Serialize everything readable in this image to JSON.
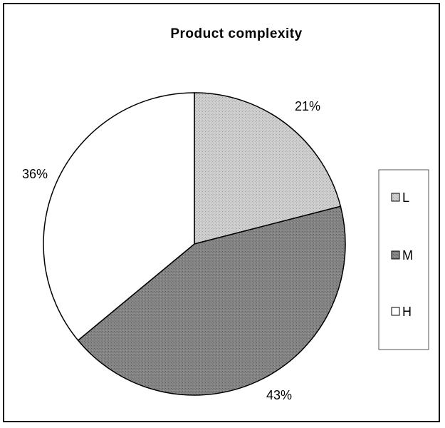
{
  "chart_data": {
    "type": "pie",
    "title": "Product complexity",
    "categories": [
      "L",
      "M",
      "H"
    ],
    "values": [
      21,
      43,
      36
    ],
    "data_labels": [
      "21%",
      "43%",
      "36%"
    ],
    "legend": {
      "placement": "right",
      "entries": [
        "L",
        "M",
        "H"
      ]
    },
    "colors": {
      "L": "#c4c4c4",
      "M": "#7f7f7f",
      "H": "#ffffff"
    },
    "start_angle_deg": 0,
    "direction": "clockwise"
  }
}
